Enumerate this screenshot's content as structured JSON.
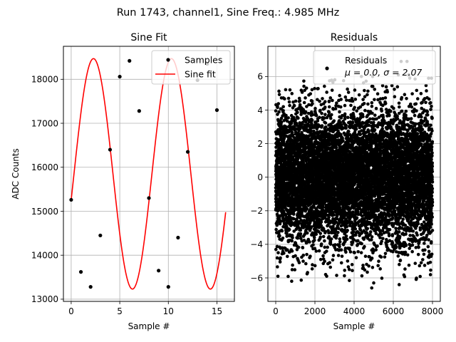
{
  "figure": {
    "suptitle": "Run 1743, channel1, Sine Freq.: 4.985 MHz"
  },
  "chart_data": [
    {
      "type": "line",
      "title": "Sine Fit",
      "xlabel": "Sample #",
      "ylabel": "ADC Counts",
      "xlim": [
        -0.8,
        16.8
      ],
      "ylim": [
        12950,
        18750
      ],
      "xticks": [
        0,
        5,
        10,
        15
      ],
      "yticks": [
        13000,
        14000,
        15000,
        16000,
        17000,
        18000
      ],
      "grid": true,
      "legend_position": "top-right",
      "series": [
        {
          "name": "Samples",
          "kind": "scatter",
          "color": "#000000",
          "x": [
            0,
            1,
            2,
            3,
            4,
            5,
            6,
            7,
            8,
            9,
            10,
            11,
            12,
            13,
            14,
            15
          ],
          "y": [
            15260,
            13620,
            13280,
            14450,
            16400,
            18060,
            18420,
            17280,
            15300,
            13650,
            13280,
            14400,
            16350,
            17980,
            18350,
            17300
          ]
        },
        {
          "name": "Sine fit",
          "kind": "line",
          "color": "#ff0000",
          "function": {
            "form": "offset + amplitude * sin(2*pi*frequency*x + phase)",
            "offset": 15850,
            "amplitude": 2620,
            "frequency": 0.12466,
            "phase": -0.2267,
            "x_range": [
              0,
              15.9
            ]
          }
        }
      ]
    },
    {
      "type": "scatter",
      "title": "Residuals",
      "xlabel": "Sample #",
      "ylabel": "",
      "xlim": [
        -400,
        8400
      ],
      "ylim": [
        -7.4,
        7.8
      ],
      "xticks": [
        0,
        2000,
        4000,
        6000,
        8000
      ],
      "yticks": [
        -6,
        -4,
        -2,
        0,
        2,
        4,
        6
      ],
      "grid": true,
      "legend_position": "top-right",
      "legend": {
        "label": "Residuals",
        "stats": "μ = 0.0, σ = 2.07"
      },
      "series": [
        {
          "name": "Residuals",
          "color": "#000000",
          "distribution": {
            "mean": 0.0,
            "std": 2.07,
            "count": 8000,
            "x_range": [
              0,
              7999
            ]
          },
          "extremes": [
            {
              "x": 4900,
              "y": -6.6
            },
            {
              "x": 5000,
              "y": -6.3
            },
            {
              "x": 6300,
              "y": -6.4
            },
            {
              "x": 2600,
              "y": -5.9
            },
            {
              "x": 6400,
              "y": 6.9
            },
            {
              "x": 6700,
              "y": 6.9
            },
            {
              "x": 7800,
              "y": 5.9
            },
            {
              "x": 7950,
              "y": 5.9
            }
          ]
        }
      ]
    }
  ]
}
